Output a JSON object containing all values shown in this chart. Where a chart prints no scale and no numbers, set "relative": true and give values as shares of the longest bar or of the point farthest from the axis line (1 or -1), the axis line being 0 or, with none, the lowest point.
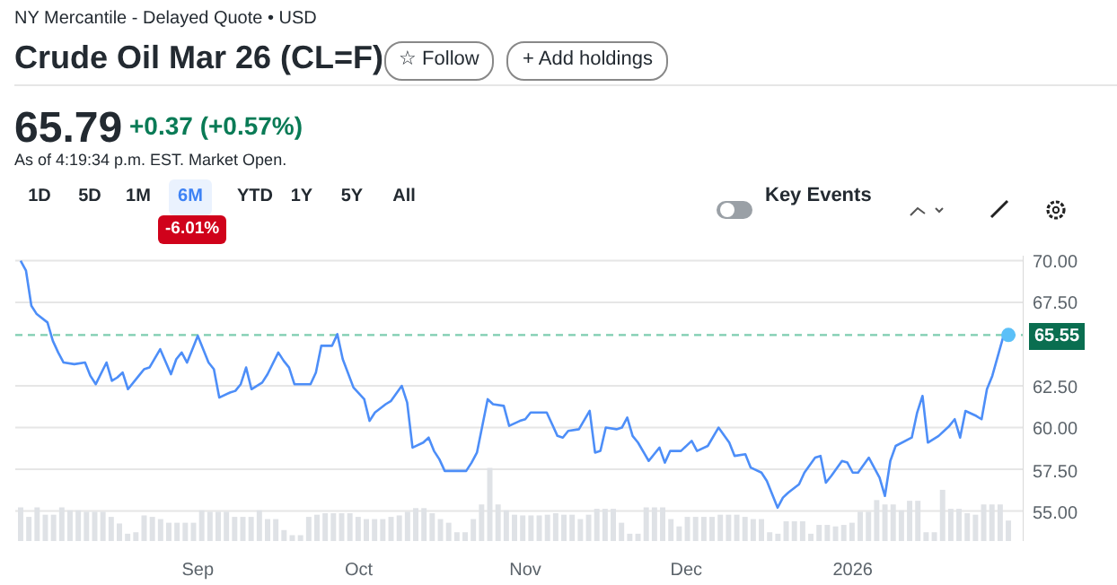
{
  "chart_data": [
    {
      "type": "line",
      "title": "Crude Oil Mar 26 (CL=F)",
      "subtitle": "NY Mercantile - Delayed Quote • USD",
      "annotations": [
        "65.79",
        "+0.37 (+0.57%)",
        "As of 4:19:34 p.m. EST. Market Open.",
        "☆ Follow",
        "+ Add holdings",
        "1D",
        "5D",
        "1M",
        "6M",
        "YTD",
        "1Y",
        "5Y",
        "All",
        "-6.01%",
        "Key Events"
      ],
      "x": [
        "2025-07-30",
        "2025-07-31",
        "2025-08-01",
        "2025-08-02",
        "2025-08-04",
        "2025-08-05",
        "2025-08-06",
        "2025-08-07",
        "2025-08-09",
        "2025-08-11",
        "2025-08-12",
        "2025-08-13",
        "2025-08-15",
        "2025-08-16",
        "2025-08-17",
        "2025-08-18",
        "2025-08-19",
        "2025-08-21",
        "2025-08-22",
        "2025-08-23",
        "2025-08-25",
        "2025-08-27",
        "2025-08-28",
        "2025-08-29",
        "2025-08-30",
        "2025-08-31",
        "2025-09-01",
        "2025-09-03",
        "2025-09-04",
        "2025-09-05",
        "2025-09-07",
        "2025-09-08",
        "2025-09-09",
        "2025-09-10",
        "2025-09-11",
        "2025-09-13",
        "2025-09-14",
        "2025-09-16",
        "2025-09-17",
        "2025-09-18",
        "2025-09-19",
        "2025-09-22",
        "2025-09-23",
        "2025-09-24",
        "2025-09-26",
        "2025-09-27",
        "2025-09-28",
        "2025-09-30",
        "2025-10-02",
        "2025-10-03",
        "2025-10-04",
        "2025-10-06",
        "2025-10-07",
        "2025-10-09",
        "2025-10-10",
        "2025-10-11",
        "2025-10-13",
        "2025-10-14",
        "2025-10-15",
        "2025-10-16",
        "2025-10-17",
        "2025-10-19",
        "2025-10-21",
        "2025-10-22",
        "2025-10-23",
        "2025-10-25",
        "2025-10-26",
        "2025-10-28",
        "2025-10-29",
        "2025-10-31",
        "2025-11-01",
        "2025-11-02",
        "2025-11-03",
        "2025-11-05",
        "2025-11-06",
        "2025-11-07",
        "2025-11-08",
        "2025-11-09",
        "2025-11-11",
        "2025-11-13",
        "2025-11-14",
        "2025-11-15",
        "2025-11-16",
        "2025-11-18",
        "2025-11-19",
        "2025-11-20",
        "2025-11-21",
        "2025-11-22",
        "2025-11-24",
        "2025-11-25",
        "2025-11-26",
        "2025-11-27",
        "2025-11-28",
        "2025-11-30",
        "2025-12-02",
        "2025-12-03",
        "2025-12-05",
        "2025-12-07",
        "2025-12-09",
        "2025-12-10",
        "2025-12-12",
        "2025-12-13",
        "2025-12-15",
        "2025-12-16",
        "2025-12-18",
        "2025-12-19",
        "2025-12-20",
        "2025-12-22",
        "2025-12-23",
        "2025-12-25",
        "2025-12-26",
        "2025-12-27",
        "2025-12-28",
        "2025-12-30",
        "2025-12-31",
        "2026-01-01",
        "2026-01-02",
        "2026-01-04",
        "2026-01-06",
        "2026-01-07",
        "2026-01-08",
        "2026-01-09",
        "2026-01-12",
        "2026-01-13",
        "2026-01-14",
        "2026-01-15",
        "2026-01-17",
        "2026-01-19",
        "2026-01-20",
        "2026-01-21",
        "2026-01-22",
        "2026-01-24",
        "2026-01-25",
        "2026-01-26",
        "2026-01-27",
        "2026-01-29",
        "2026-01-30"
      ],
      "series": [
        {
          "color": "#4d8ef8",
          "values": [
            70.0,
            69.4,
            67.3,
            66.8,
            66.3,
            65.2,
            64.5,
            63.9,
            63.8,
            63.9,
            63.1,
            62.6,
            63.9,
            62.8,
            63.0,
            63.3,
            62.3,
            63.1,
            63.5,
            63.6,
            64.7,
            63.2,
            64.1,
            64.5,
            63.9,
            64.7,
            65.5,
            63.9,
            63.5,
            61.8,
            62.1,
            62.2,
            62.6,
            63.6,
            62.3,
            62.7,
            63.2,
            64.5,
            64.0,
            63.6,
            62.6,
            62.6,
            63.3,
            64.9,
            64.9,
            65.6,
            64.1,
            62.4,
            61.7,
            60.4,
            60.9,
            61.4,
            61.6,
            62.5,
            61.5,
            58.8,
            59.1,
            59.4,
            58.6,
            58.1,
            57.4,
            57.4,
            57.4,
            57.9,
            58.5,
            61.7,
            61.4,
            61.3,
            60.1,
            60.4,
            60.5,
            60.9,
            60.9,
            60.9,
            60.2,
            59.5,
            59.4,
            59.8,
            59.9,
            61.0,
            58.5,
            58.6,
            60.0,
            59.9,
            60.0,
            60.6,
            59.5,
            59.1,
            58.0,
            58.4,
            58.8,
            57.9,
            58.6,
            58.6,
            59.2,
            58.6,
            58.9,
            60.0,
            59.1,
            58.3,
            58.4,
            57.6,
            57.3,
            56.8,
            55.2,
            55.8,
            56.1,
            56.6,
            57.3,
            58.2,
            58.3,
            56.7,
            57.1,
            58.0,
            57.9,
            57.3,
            57.3,
            58.2,
            57.0,
            55.9,
            58.0,
            58.9,
            59.4,
            60.9,
            61.9,
            59.1,
            59.5,
            60.1,
            60.5,
            59.4,
            61.0,
            60.7,
            60.5,
            62.3,
            63.1,
            65.4,
            65.55
          ]
        },
        {
          "type": "scatter",
          "x": [
            "2026-01-30"
          ],
          "color": "#5bc0f8",
          "values": [
            65.55
          ]
        }
      ],
      "xlim": [
        "2025-07-29",
        "2026-02-02"
      ],
      "xticks": [
        {
          "value": "2025-09-01",
          "label": "Sep"
        },
        {
          "value": "2025-10-01",
          "label": "Oct"
        },
        {
          "value": "2025-11-01",
          "label": "Nov"
        },
        {
          "value": "2025-12-01",
          "label": "Dec"
        },
        {
          "value": "2026-01-01",
          "label": "2026"
        }
      ],
      "ylim": [
        53.2,
        70.3
      ],
      "yticks": [
        {
          "value": 55,
          "label": "55.00"
        },
        {
          "value": 57.5,
          "label": "57.50"
        },
        {
          "value": 60,
          "label": "60.00"
        },
        {
          "value": 62.5,
          "label": "62.50"
        },
        {
          "value": 67.5,
          "label": "67.50"
        },
        {
          "value": 70,
          "label": "70.00"
        }
      ],
      "ref_lines": [
        {
          "axis": "y",
          "value": 65.55,
          "label": "65.55",
          "color": "#7dcdb0",
          "line_style": "dashed"
        }
      ],
      "grid": "y"
    },
    {
      "type": "bar",
      "relative": true,
      "tick_labels": false,
      "color": "#dfe2e6",
      "categories": [
        null,
        null,
        null,
        null,
        null,
        null,
        null,
        null,
        null,
        null,
        null,
        null,
        null,
        null,
        null,
        null,
        null,
        null,
        null,
        null,
        null,
        null,
        null,
        null,
        null,
        null,
        null,
        null,
        null,
        null,
        null,
        null,
        null,
        null,
        null,
        null,
        null,
        null,
        null,
        null,
        null,
        null,
        null,
        null,
        null,
        null,
        null,
        null,
        null,
        null,
        null,
        null,
        null,
        null,
        null,
        null,
        null,
        null,
        null,
        null,
        null,
        null,
        null,
        null,
        null,
        null,
        null,
        null,
        null,
        null,
        null,
        null,
        null,
        null,
        null,
        null,
        null,
        null,
        null,
        null,
        null,
        null,
        null,
        null,
        null,
        null,
        null,
        null,
        null,
        null,
        null,
        null,
        null,
        null,
        null,
        null,
        null,
        null,
        null,
        null,
        null,
        null,
        null,
        null,
        null,
        null,
        null,
        null,
        null,
        null,
        null,
        null,
        null,
        null,
        null,
        null,
        null,
        null,
        null,
        null,
        null
      ],
      "values": [
        0.46,
        0.33,
        0.46,
        0.36,
        0.36,
        0.46,
        0.42,
        0.42,
        0.4,
        0.4,
        0.4,
        0.33,
        0.24,
        0.1,
        0.12,
        0.35,
        0.33,
        0.3,
        0.25,
        0.25,
        0.25,
        0.25,
        0.42,
        0.4,
        0.4,
        0.4,
        0.33,
        0.33,
        0.33,
        0.42,
        0.3,
        0.3,
        0.15,
        0.08,
        0.08,
        0.33,
        0.36,
        0.38,
        0.38,
        0.38,
        0.38,
        0.33,
        0.3,
        0.3,
        0.3,
        0.33,
        0.35,
        0.4,
        0.45,
        0.45,
        0.38,
        0.3,
        0.25,
        0.12,
        0.12,
        0.3,
        0.5,
        1.0,
        0.5,
        0.42,
        0.36,
        0.35,
        0.35,
        0.35,
        0.36,
        0.38,
        0.36,
        0.36,
        0.3,
        0.36,
        0.44,
        0.44,
        0.44,
        0.25,
        0.1,
        0.1,
        0.46,
        0.46,
        0.46,
        0.3,
        0.2,
        0.33,
        0.33,
        0.33,
        0.33,
        0.36,
        0.36,
        0.36,
        0.33,
        0.3,
        0.3,
        0.12,
        0.1,
        0.27,
        0.27,
        0.27,
        0.1,
        0.22,
        0.22,
        0.2,
        0.22,
        0.25,
        0.4,
        0.4,
        0.56,
        0.5,
        0.5,
        0.42,
        0.55,
        0.55,
        0.12,
        0.12,
        0.7,
        0.44,
        0.44,
        0.38,
        0.36,
        0.5,
        0.5,
        0.5,
        0.28
      ]
    }
  ]
}
